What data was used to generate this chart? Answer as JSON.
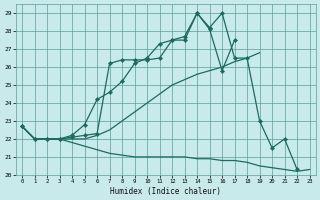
{
  "xlabel": "Humidex (Indice chaleur)",
  "bg_color": "#c8eaea",
  "grid_color": "#5a9e98",
  "line_color": "#1a6b60",
  "xlim": [
    -0.5,
    23.5
  ],
  "ylim": [
    20,
    29.5
  ],
  "yticks": [
    20,
    21,
    22,
    23,
    24,
    25,
    26,
    27,
    28,
    29
  ],
  "xticks": [
    0,
    1,
    2,
    3,
    4,
    5,
    6,
    7,
    8,
    9,
    10,
    11,
    12,
    13,
    14,
    15,
    16,
    17,
    18,
    19,
    20,
    21,
    22,
    23
  ],
  "line1_x": [
    0,
    1,
    2,
    3,
    4,
    5,
    6,
    7,
    8,
    9,
    10,
    11,
    12,
    13,
    14,
    15,
    16,
    17,
    18,
    19,
    20,
    21,
    22
  ],
  "line1_y": [
    22.7,
    22.0,
    22.0,
    22.0,
    22.1,
    22.2,
    22.3,
    26.2,
    26.4,
    26.4,
    26.4,
    26.5,
    27.5,
    27.5,
    29.0,
    28.2,
    29.0,
    26.5,
    26.5,
    23.0,
    21.5,
    22.0,
    20.3
  ],
  "line2_x": [
    0,
    1,
    2,
    3,
    4,
    5,
    6,
    7,
    8,
    9,
    10,
    11,
    12,
    13,
    14,
    15,
    16,
    17
  ],
  "line2_y": [
    22.7,
    22.0,
    22.0,
    22.0,
    22.2,
    22.8,
    24.2,
    24.6,
    25.2,
    26.2,
    26.5,
    27.3,
    27.5,
    27.7,
    29.0,
    28.1,
    25.8,
    27.5
  ],
  "line3_x": [
    0,
    1,
    2,
    3,
    4,
    5,
    6,
    7,
    8,
    9,
    10,
    11,
    12,
    13,
    14,
    15,
    16,
    17,
    18,
    19
  ],
  "line3_y": [
    22.7,
    22.0,
    22.0,
    22.0,
    22.0,
    22.0,
    22.2,
    22.5,
    23.0,
    23.5,
    24.0,
    24.5,
    25.0,
    25.3,
    25.6,
    25.8,
    26.0,
    26.3,
    26.5,
    26.8
  ],
  "line4_x": [
    0,
    1,
    2,
    3,
    4,
    5,
    6,
    7,
    8,
    9,
    10,
    11,
    12,
    13,
    14,
    15,
    16,
    17,
    18,
    19,
    20,
    21,
    22,
    23
  ],
  "line4_y": [
    22.7,
    22.0,
    22.0,
    22.0,
    21.8,
    21.6,
    21.4,
    21.2,
    21.1,
    21.0,
    21.0,
    21.0,
    21.0,
    21.0,
    20.9,
    20.9,
    20.8,
    20.8,
    20.7,
    20.5,
    20.4,
    20.3,
    20.2,
    20.3
  ]
}
